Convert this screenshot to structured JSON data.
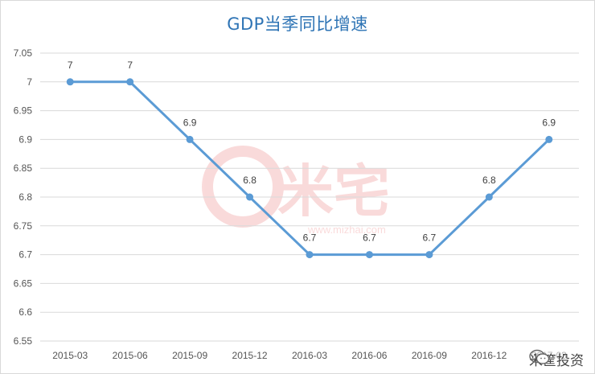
{
  "chart_data": {
    "type": "line",
    "title": "GDP当季同比增速",
    "categories": [
      "2015-03",
      "2015-06",
      "2015-09",
      "2015-12",
      "2016-03",
      "2016-06",
      "2016-09",
      "2016-12",
      "2017-03"
    ],
    "series": [
      {
        "values": [
          7,
          7,
          6.9,
          6.8,
          6.7,
          6.7,
          6.7,
          6.8,
          6.9
        ]
      }
    ],
    "data_labels": [
      "7",
      "7",
      "6.9",
      "6.8",
      "6.7",
      "6.7",
      "6.7",
      "6.8",
      "6.9"
    ],
    "ylim": [
      6.55,
      7.05
    ],
    "yticks": [
      "6.55",
      "6.6",
      "6.65",
      "6.7",
      "6.75",
      "6.8",
      "6.85",
      "6.9",
      "6.95",
      "7",
      "7.05"
    ],
    "grid": true,
    "legend": "none",
    "colors": {
      "line": "#5b9bd5",
      "title": "#2e74b5",
      "grid": "#d9d9d9"
    }
  },
  "watermark": {
    "text": "米宅",
    "url": "www.mizhai.com"
  },
  "brand": {
    "label": "米筐投资",
    "icon": "wechat-icon"
  }
}
